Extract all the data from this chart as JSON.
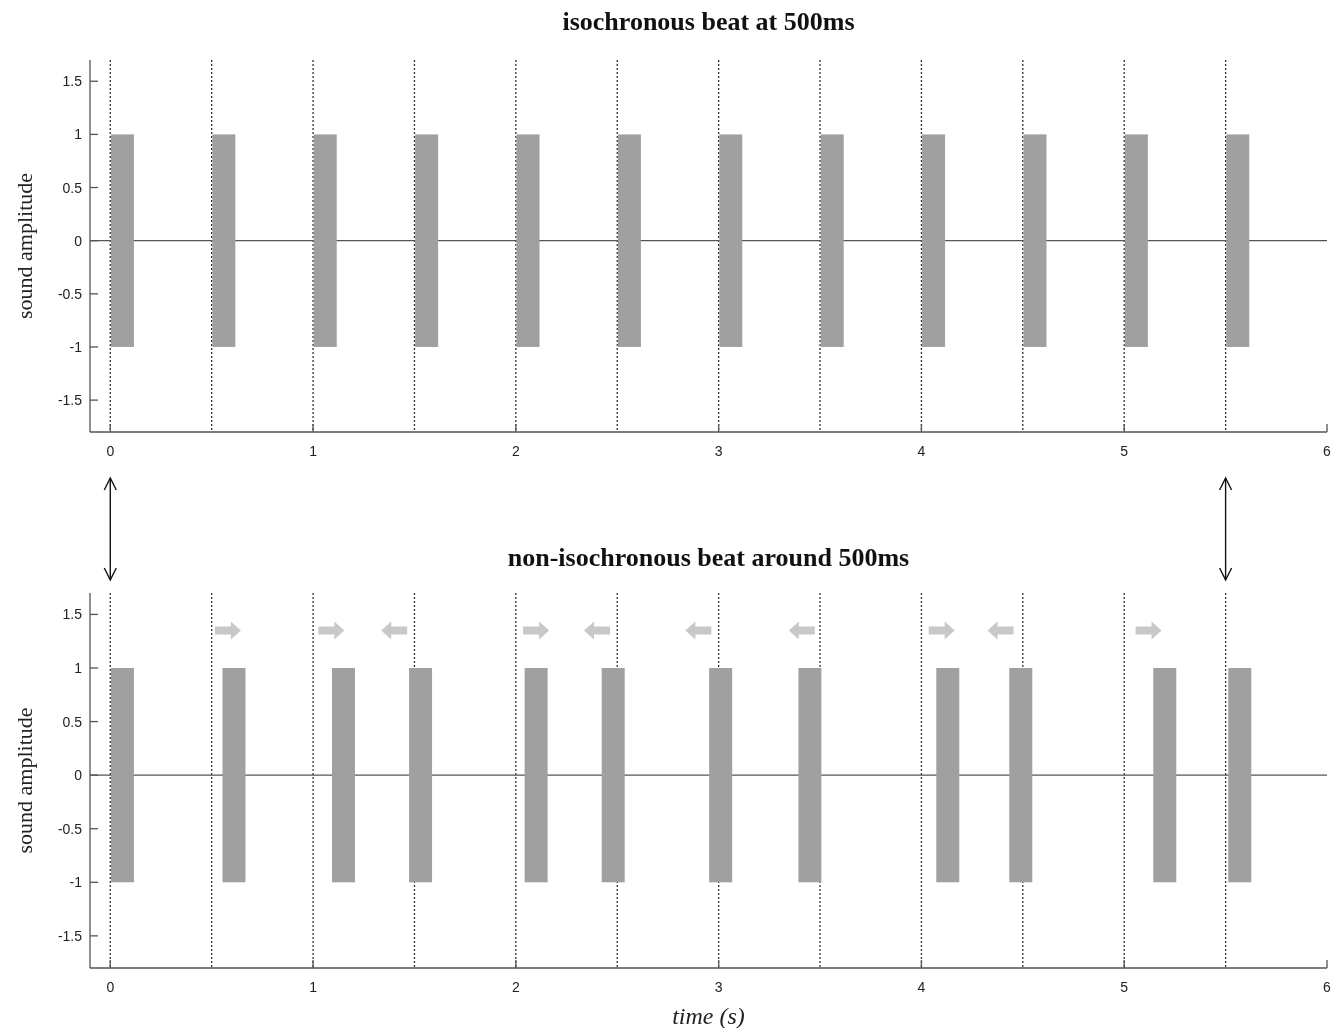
{
  "chart_data": [
    {
      "type": "bar",
      "title": "isochronous beat at 500ms",
      "ylabel": "sound amplitude",
      "x": [
        0.06,
        0.56,
        1.06,
        1.56,
        2.06,
        2.56,
        3.06,
        3.56,
        4.06,
        4.56,
        5.06,
        5.56
      ],
      "base": [
        -1,
        -1,
        -1,
        -1,
        -1,
        -1,
        -1,
        -1,
        -1,
        -1,
        -1,
        -1
      ],
      "values": [
        2,
        2,
        2,
        2,
        2,
        2,
        2,
        2,
        2,
        2,
        2,
        2
      ],
      "color": "#a0a0a0",
      "xlim": [
        -0.1,
        6
      ],
      "xticks": [
        0,
        1,
        2,
        3,
        4,
        5,
        6
      ],
      "ylim": [
        -1.8,
        1.7
      ],
      "yticks": [
        -1.5,
        -1,
        -0.5,
        0,
        0.5,
        1,
        1.5
      ],
      "ref_lines": [
        {
          "axis": "y",
          "value": 0,
          "color": "#555555",
          "line_style": "solid"
        },
        {
          "axis": "x",
          "value": 0,
          "color": "#333333",
          "line_style": "dotted"
        },
        {
          "axis": "x",
          "value": 0.5,
          "color": "#333333",
          "line_style": "dotted"
        },
        {
          "axis": "x",
          "value": 1,
          "color": "#333333",
          "line_style": "dotted"
        },
        {
          "axis": "x",
          "value": 1.5,
          "color": "#333333",
          "line_style": "dotted"
        },
        {
          "axis": "x",
          "value": 2,
          "color": "#333333",
          "line_style": "dotted"
        },
        {
          "axis": "x",
          "value": 2.5,
          "color": "#333333",
          "line_style": "dotted"
        },
        {
          "axis": "x",
          "value": 3,
          "color": "#333333",
          "line_style": "dotted"
        },
        {
          "axis": "x",
          "value": 3.5,
          "color": "#333333",
          "line_style": "dotted"
        },
        {
          "axis": "x",
          "value": 4,
          "color": "#333333",
          "line_style": "dotted"
        },
        {
          "axis": "x",
          "value": 4.5,
          "color": "#333333",
          "line_style": "dotted"
        },
        {
          "axis": "x",
          "value": 5,
          "color": "#333333",
          "line_style": "dotted"
        },
        {
          "axis": "x",
          "value": 5.5,
          "color": "#333333",
          "line_style": "dotted"
        }
      ]
    },
    {
      "type": "bar",
      "title": "non-isochronous beat around 500ms",
      "ylabel": "sound amplitude",
      "xlabel": "time (s)",
      "x": [
        0.06,
        0.61,
        1.15,
        1.53,
        2.1,
        2.48,
        3.01,
        3.45,
        4.13,
        4.49,
        5.2,
        5.57
      ],
      "base": [
        -1,
        -1,
        -1,
        -1,
        -1,
        -1,
        -1,
        -1,
        -1,
        -1,
        -1,
        -1
      ],
      "values": [
        2,
        2,
        2,
        2,
        2,
        2,
        2,
        2,
        2,
        2,
        2,
        2
      ],
      "color": "#a0a0a0",
      "xlim": [
        -0.1,
        6
      ],
      "xticks": [
        0,
        1,
        2,
        3,
        4,
        5,
        6
      ],
      "ylim": [
        -1.8,
        1.7
      ],
      "yticks": [
        -1.5,
        -1,
        -0.5,
        0,
        0.5,
        1,
        1.5
      ],
      "ref_lines": [
        {
          "axis": "y",
          "value": 0,
          "color": "#555555",
          "line_style": "solid"
        },
        {
          "axis": "x",
          "value": 0,
          "color": "#333333",
          "line_style": "dotted"
        },
        {
          "axis": "x",
          "value": 0.5,
          "color": "#333333",
          "line_style": "dotted"
        },
        {
          "axis": "x",
          "value": 1,
          "color": "#333333",
          "line_style": "dotted"
        },
        {
          "axis": "x",
          "value": 1.5,
          "color": "#333333",
          "line_style": "dotted"
        },
        {
          "axis": "x",
          "value": 2,
          "color": "#333333",
          "line_style": "dotted"
        },
        {
          "axis": "x",
          "value": 2.5,
          "color": "#333333",
          "line_style": "dotted"
        },
        {
          "axis": "x",
          "value": 3,
          "color": "#333333",
          "line_style": "dotted"
        },
        {
          "axis": "x",
          "value": 3.5,
          "color": "#333333",
          "line_style": "dotted"
        },
        {
          "axis": "x",
          "value": 4,
          "color": "#333333",
          "line_style": "dotted"
        },
        {
          "axis": "x",
          "value": 4.5,
          "color": "#333333",
          "line_style": "dotted"
        },
        {
          "axis": "x",
          "value": 5,
          "color": "#333333",
          "line_style": "dotted"
        },
        {
          "axis": "x",
          "value": 5.5,
          "color": "#333333",
          "line_style": "dotted"
        }
      ]
    }
  ]
}
